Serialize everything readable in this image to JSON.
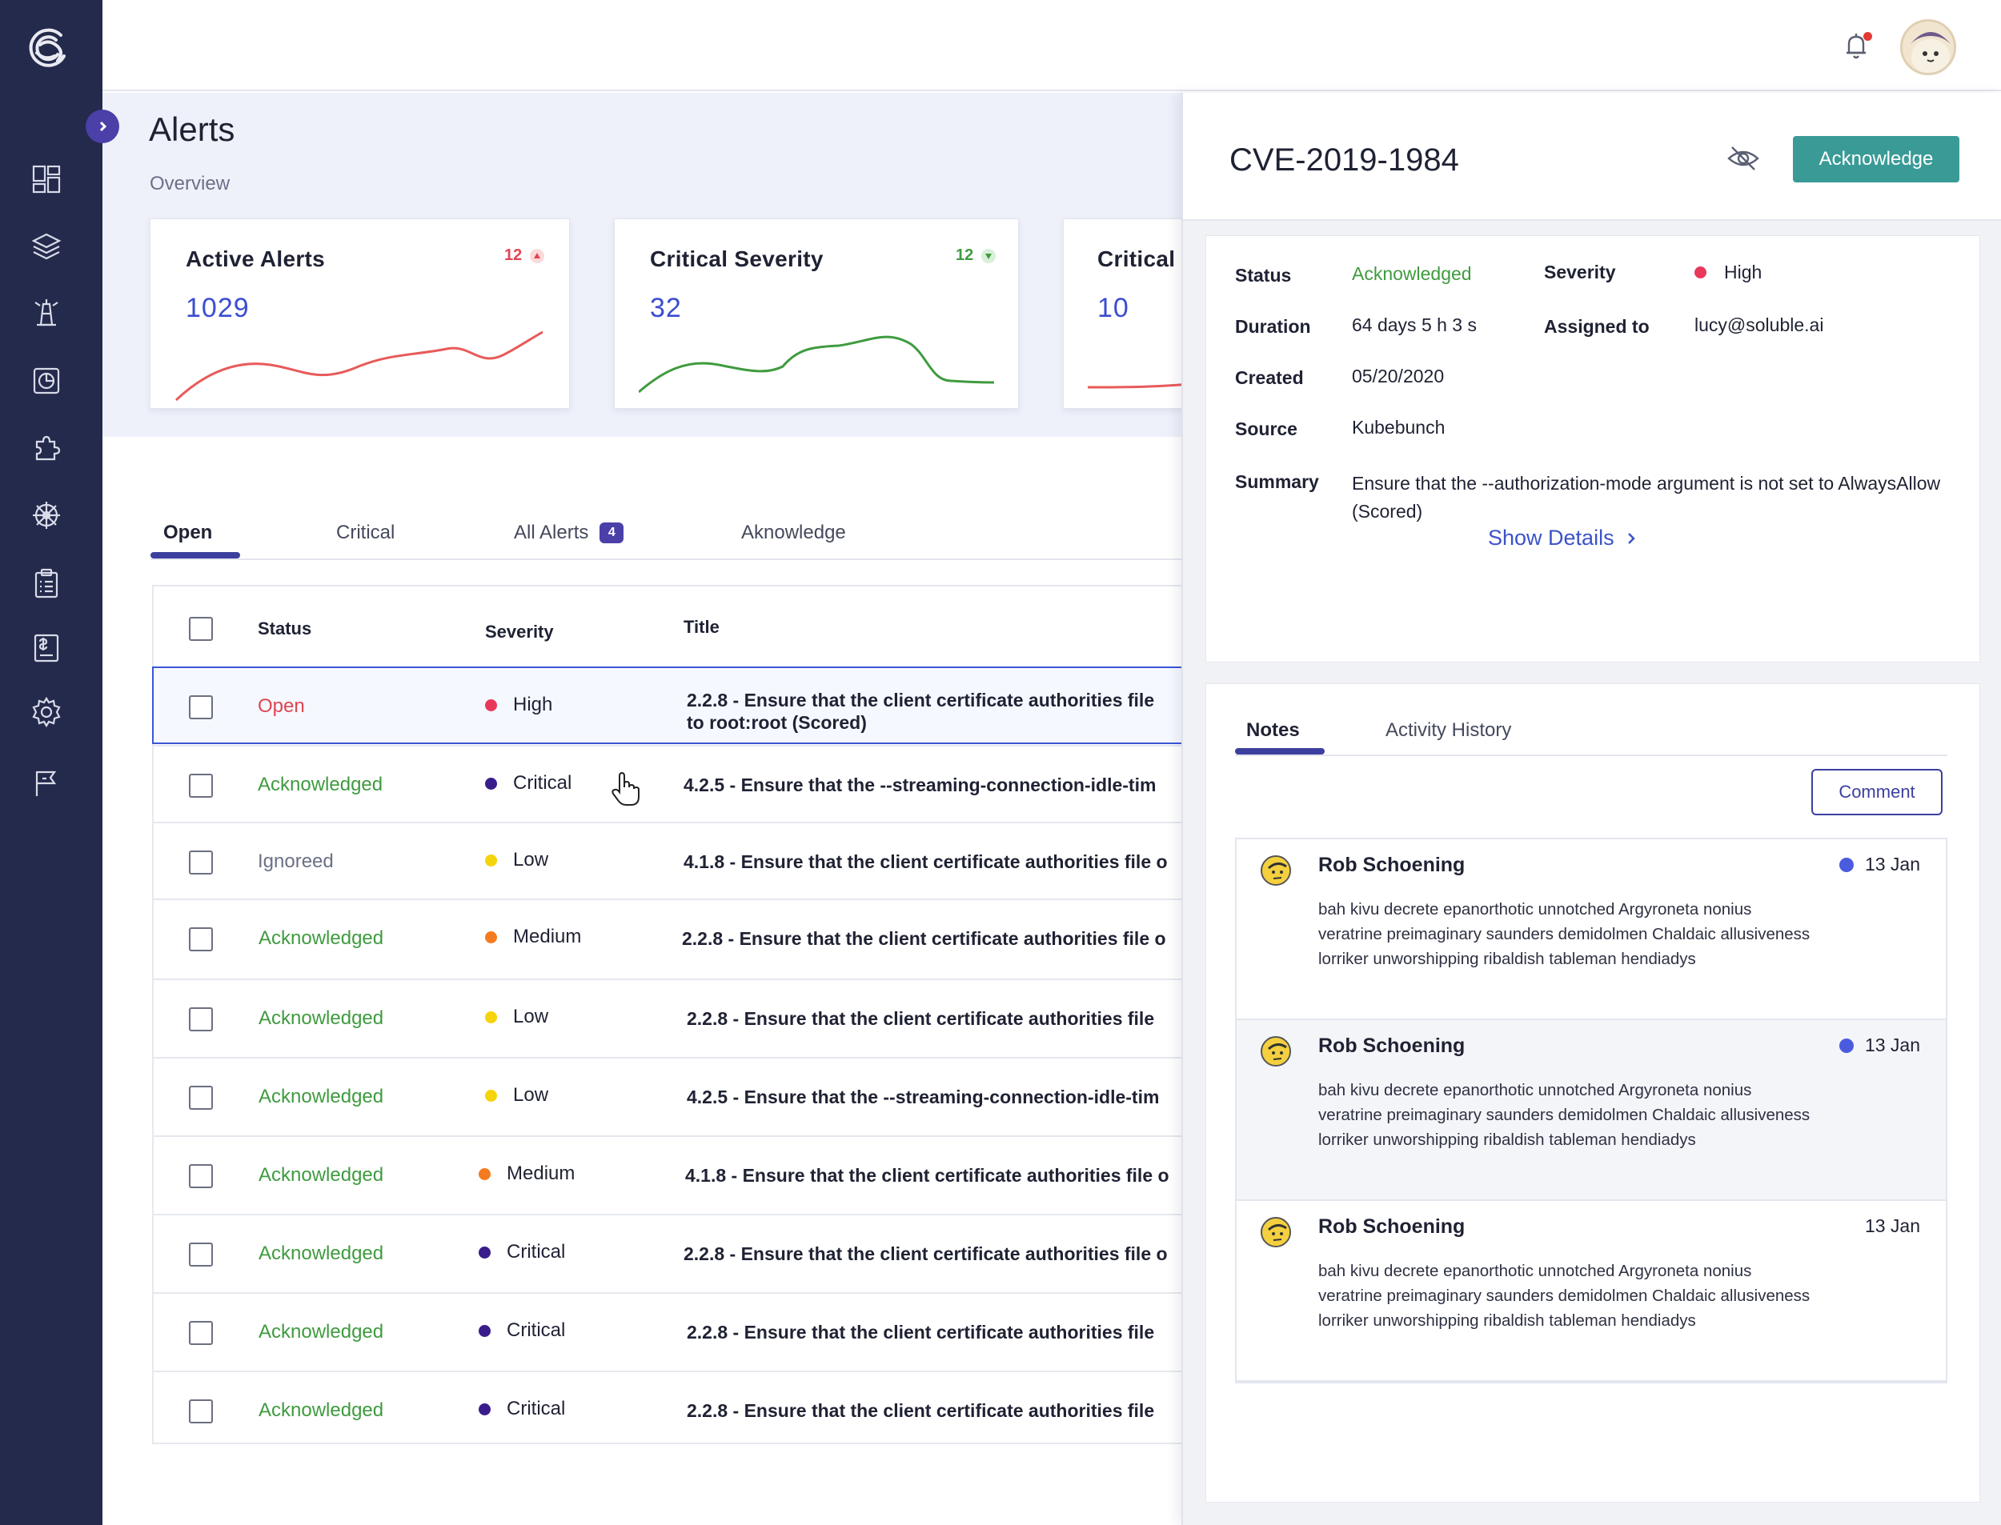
{
  "page": {
    "title": "Alerts",
    "overview_label": "Overview"
  },
  "sidebar": {
    "items": [
      {
        "name": "dashboard-icon"
      },
      {
        "name": "layers-icon"
      },
      {
        "name": "lighthouse-icon"
      },
      {
        "name": "reports-icon"
      },
      {
        "name": "puzzle-icon"
      },
      {
        "name": "helm-icon"
      },
      {
        "name": "clipboard-icon"
      },
      {
        "name": "billing-icon"
      },
      {
        "name": "settings-icon"
      },
      {
        "name": "flag-icon"
      }
    ]
  },
  "cards": [
    {
      "title": "Active Alerts",
      "value": "1029",
      "delta": "12",
      "trend": "up",
      "color": "#e85a5a"
    },
    {
      "title": "Critical Severity",
      "value": "32",
      "delta": "12",
      "trend": "down",
      "color": "#3f9b3f"
    },
    {
      "title": "Critical",
      "value": "10"
    }
  ],
  "tabs": [
    {
      "label": "Open",
      "active": true
    },
    {
      "label": "Critical"
    },
    {
      "label": "All Alerts",
      "badge": "4"
    },
    {
      "label": "Aknowledge"
    }
  ],
  "table": {
    "columns": {
      "status": "Status",
      "severity": "Severity",
      "title": "Title"
    },
    "rows": [
      {
        "status": "Open",
        "severity": "High",
        "title": "2.2.8 - Ensure that the client certificate authorities file",
        "title2": "to root:root (Scored)"
      },
      {
        "status": "Acknowledged",
        "severity": "Critical",
        "title": "4.2.5 - Ensure that the --streaming-connection-idle-tim"
      },
      {
        "status": "Ignoreed",
        "severity": "Low",
        "title": "4.1.8 - Ensure that the client certificate authorities file o"
      },
      {
        "status": "Acknowledged",
        "severity": "Medium",
        "title": "2.2.8 - Ensure that the client certificate authorities file o"
      },
      {
        "status": "Acknowledged",
        "severity": "Low",
        "title": "2.2.8 - Ensure that the client certificate authorities file"
      },
      {
        "status": "Acknowledged",
        "severity": "Low",
        "title": "4.2.5 - Ensure that the --streaming-connection-idle-tim"
      },
      {
        "status": "Acknowledged",
        "severity": "Medium",
        "title": "4.1.8 - Ensure that the client certificate authorities file o"
      },
      {
        "status": "Acknowledged",
        "severity": "Critical",
        "title": "2.2.8 - Ensure that the client certificate authorities file o"
      },
      {
        "status": "Acknowledged",
        "severity": "Critical",
        "title": "2.2.8 - Ensure that the client certificate authorities file"
      },
      {
        "status": "Acknowledged",
        "severity": "Critical",
        "title": "2.2.8 - Ensure that the client certificate authorities file"
      }
    ]
  },
  "severity_colors": {
    "High": "#e8395a",
    "Critical": "#3a1d8c",
    "Low": "#f5d40b",
    "Medium": "#f47b20"
  },
  "detail": {
    "cve": "CVE-2019-1984",
    "acknowledge_label": "Acknowledge",
    "fields": {
      "status_label": "Status",
      "status": "Acknowledged",
      "severity_label": "Severity",
      "severity": "High",
      "duration_label": "Duration",
      "duration": "64 days 5 h 3 s",
      "assigned_label": "Assigned to",
      "assigned": "lucy@soluble.ai",
      "created_label": "Created",
      "created": "05/20/2020",
      "source_label": "Source",
      "source": "Kubebunch",
      "summary_label": "Summary",
      "summary": "Ensure that the --authorization-mode argument is not set to AlwaysAllow (Scored)"
    },
    "show_details": "Show Details"
  },
  "notes": {
    "tabs": [
      "Notes",
      "Activity History"
    ],
    "comment_label": "Comment",
    "items": [
      {
        "author": "Rob Schoening",
        "date": "13 Jan",
        "unread": true,
        "body": "bah kivu decrete epanorthotic unnotched Argyroneta nonius veratrine preimaginary saunders demidolmen Chaldaic allusiveness lorriker unworshipping ribaldish tableman hendiadys"
      },
      {
        "author": "Rob Schoening",
        "date": "13 Jan",
        "unread": true,
        "body": "bah kivu decrete epanorthotic unnotched Argyroneta nonius veratrine preimaginary saunders demidolmen Chaldaic allusiveness lorriker unworshipping ribaldish tableman hendiadys"
      },
      {
        "author": "Rob Schoening",
        "date": "13 Jan",
        "unread": false,
        "body": "bah kivu decrete epanorthotic unnotched Argyroneta nonius veratrine preimaginary saunders demidolmen Chaldaic allusiveness lorriker unworshipping ribaldish tableman hendiadys"
      }
    ]
  }
}
